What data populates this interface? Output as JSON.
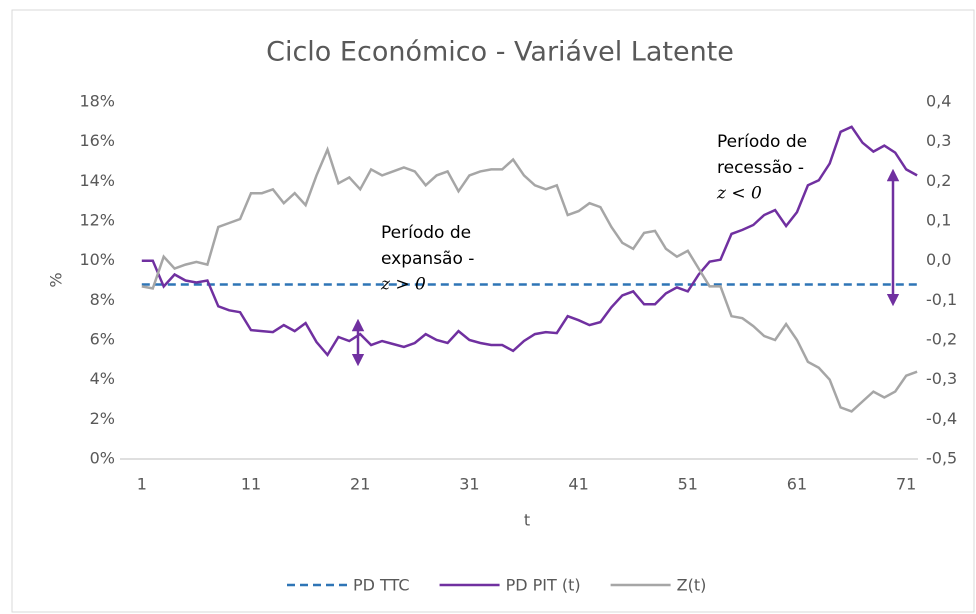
{
  "chart_data": {
    "type": "line",
    "title": "Ciclo Económico - Variável Latente",
    "x_label": "t",
    "y_label": "%",
    "x": [
      1,
      2,
      3,
      4,
      5,
      6,
      7,
      8,
      9,
      10,
      11,
      12,
      13,
      14,
      15,
      16,
      17,
      18,
      19,
      20,
      21,
      22,
      23,
      24,
      25,
      26,
      27,
      28,
      29,
      30,
      31,
      32,
      33,
      34,
      35,
      36,
      37,
      38,
      39,
      40,
      41,
      42,
      43,
      44,
      45,
      46,
      47,
      48,
      49,
      50,
      51,
      52,
      53,
      54,
      55,
      56,
      57,
      58,
      59,
      60,
      61,
      62,
      63,
      64,
      65,
      66,
      67,
      68,
      69,
      70,
      71,
      72
    ],
    "xlim": [
      -1,
      73
    ],
    "xticks": [
      1,
      11,
      21,
      31,
      41,
      51,
      61,
      71
    ],
    "ylim": [
      0,
      18
    ],
    "yticks": [
      {
        "value": 0,
        "label": "0%"
      },
      {
        "value": 2,
        "label": "2%"
      },
      {
        "value": 4,
        "label": "4%"
      },
      {
        "value": 6,
        "label": "6%"
      },
      {
        "value": 8,
        "label": "8%"
      },
      {
        "value": 10,
        "label": "10%"
      },
      {
        "value": 12,
        "label": "12%"
      },
      {
        "value": 14,
        "label": "14%"
      },
      {
        "value": 16,
        "label": "16%"
      },
      {
        "value": 18,
        "label": "18%"
      }
    ],
    "y2lim": [
      -0.5,
      0.4
    ],
    "y2ticks": [
      {
        "value": -0.5,
        "label": "-0,5"
      },
      {
        "value": -0.4,
        "label": "-0,4"
      },
      {
        "value": -0.3,
        "label": "-0,3"
      },
      {
        "value": -0.2,
        "label": "-0,2"
      },
      {
        "value": -0.1,
        "label": "-0,1"
      },
      {
        "value": 0,
        "label": "0,0"
      },
      {
        "value": 0.1,
        "label": "0,1"
      },
      {
        "value": 0.2,
        "label": "0,2"
      },
      {
        "value": 0.3,
        "label": "0,3"
      },
      {
        "value": 0.4,
        "label": "0,4"
      }
    ],
    "grid": false,
    "legend": "bottom",
    "series": [
      {
        "name": "PD TTC",
        "color": "#2e75b6",
        "dashed": true,
        "values": [
          8.8,
          8.8,
          8.8,
          8.8,
          8.8,
          8.8,
          8.8,
          8.8,
          8.8,
          8.8,
          8.8,
          8.8,
          8.8,
          8.8,
          8.8,
          8.8,
          8.8,
          8.8,
          8.8,
          8.8,
          8.8,
          8.8,
          8.8,
          8.8,
          8.8,
          8.8,
          8.8,
          8.8,
          8.8,
          8.8,
          8.8,
          8.8,
          8.8,
          8.8,
          8.8,
          8.8,
          8.8,
          8.8,
          8.8,
          8.8,
          8.8,
          8.8,
          8.8,
          8.8,
          8.8,
          8.8,
          8.8,
          8.8,
          8.8,
          8.8,
          8.8,
          8.8,
          8.8,
          8.8,
          8.8,
          8.8,
          8.8,
          8.8,
          8.8,
          8.8,
          8.8,
          8.8,
          8.8,
          8.8,
          8.8,
          8.8,
          8.8,
          8.8,
          8.8,
          8.8,
          8.8,
          8.8
        ]
      },
      {
        "name": "PD PIT (t)",
        "color": "#7030a0",
        "values": [
          10.0,
          10.0,
          8.7,
          9.3,
          9.0,
          8.9,
          9.0,
          7.7,
          7.5,
          7.4,
          6.5,
          6.45,
          6.4,
          6.75,
          6.45,
          6.85,
          5.9,
          5.25,
          6.15,
          5.95,
          6.3,
          5.75,
          5.95,
          5.8,
          5.65,
          5.85,
          6.3,
          6.0,
          5.85,
          6.45,
          6.0,
          5.85,
          5.75,
          5.75,
          5.45,
          5.95,
          6.3,
          6.4,
          6.35,
          7.2,
          7.0,
          6.75,
          6.9,
          7.65,
          8.25,
          8.45,
          7.8,
          7.8,
          8.35,
          8.65,
          8.45,
          9.3,
          9.95,
          10.05,
          11.35,
          11.55,
          11.8,
          12.3,
          12.55,
          11.75,
          12.45,
          13.8,
          14.05,
          14.9,
          16.5,
          16.75,
          15.95,
          15.5,
          15.8,
          15.45,
          14.6,
          14.3
        ]
      },
      {
        "name": "Z(t)",
        "color": "#a6a6a6",
        "axis": "y2",
        "values": [
          -0.065,
          -0.07,
          0.01,
          -0.02,
          -0.01,
          -0.003,
          -0.01,
          0.085,
          0.095,
          0.105,
          0.17,
          0.17,
          0.18,
          0.145,
          0.17,
          0.14,
          0.215,
          0.28,
          0.195,
          0.21,
          0.18,
          0.23,
          0.215,
          0.225,
          0.235,
          0.225,
          0.19,
          0.215,
          0.225,
          0.175,
          0.215,
          0.225,
          0.23,
          0.23,
          0.255,
          0.215,
          0.19,
          0.18,
          0.19,
          0.115,
          0.125,
          0.145,
          0.135,
          0.085,
          0.045,
          0.03,
          0.07,
          0.075,
          0.03,
          0.01,
          0.025,
          -0.02,
          -0.065,
          -0.065,
          -0.14,
          -0.145,
          -0.165,
          -0.19,
          -0.2,
          -0.16,
          -0.2,
          -0.255,
          -0.27,
          -0.3,
          -0.37,
          -0.38,
          -0.355,
          -0.33,
          -0.345,
          -0.33,
          -0.29,
          -0.28
        ]
      }
    ],
    "annotations": [
      {
        "lines": [
          "Período de",
          "expansão -",
          "z > 0"
        ]
      },
      {
        "lines": [
          "Período de",
          "recessão -",
          "z < 0"
        ]
      }
    ]
  }
}
